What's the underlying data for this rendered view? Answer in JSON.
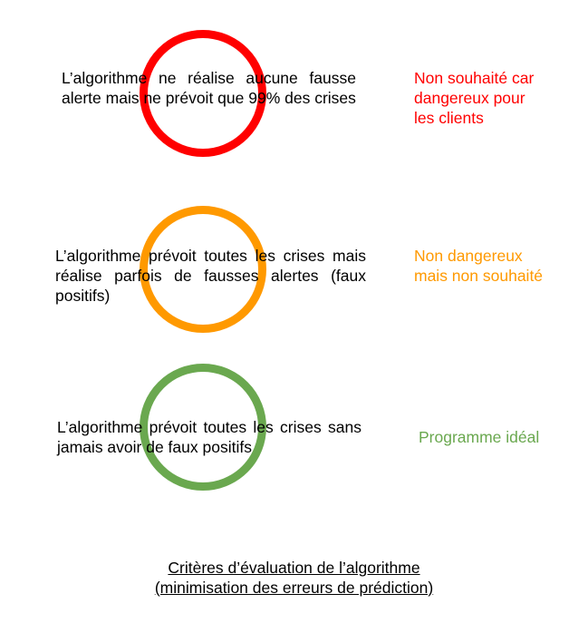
{
  "colors": {
    "red": "#ff0000",
    "orange": "#ff9900",
    "green": "#6aa84f",
    "text": "#000000"
  },
  "cases": [
    {
      "description": "L’algorithme ne réalise aucune fausse alerte mais ne prévoit que 99% des crises",
      "verdict_lines": [
        "Non souhaité car",
        "dangereux pour",
        "les clients"
      ],
      "color": "red"
    },
    {
      "description": "L’algorithme prévoit toutes les crises mais réalise parfois de fausses alertes (faux positifs)",
      "verdict_lines": [
        "Non dangereux",
        "mais non souhaité"
      ],
      "color": "orange"
    },
    {
      "description": "L’algorithme prévoit toutes les crises sans jamais avoir de faux positifs",
      "verdict_lines": [
        "Programme idéal"
      ],
      "color": "green"
    }
  ],
  "caption": {
    "line1": "Critères d’évaluation de l’algorithme",
    "line2": "(minimisation des erreurs de prédiction)"
  }
}
